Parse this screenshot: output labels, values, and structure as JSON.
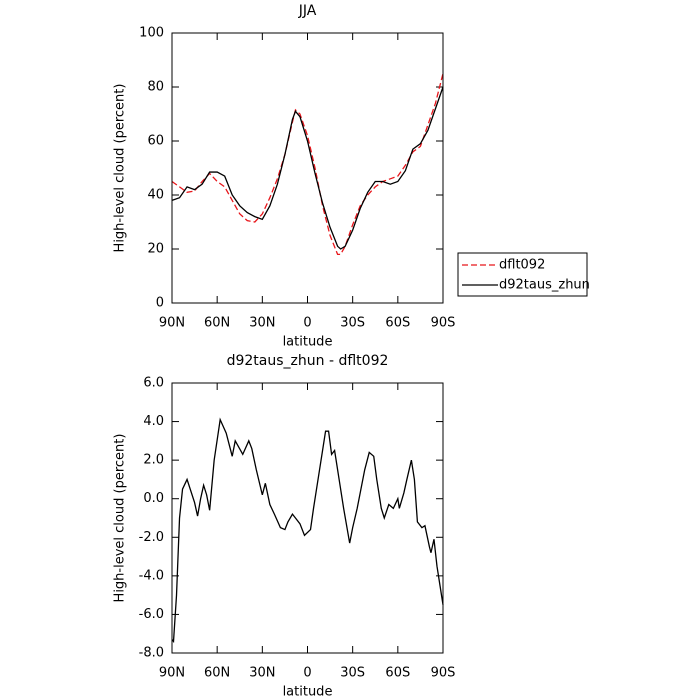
{
  "chart_data": [
    {
      "type": "line",
      "title": "JJA",
      "ylabel": "High-level cloud (percent)",
      "xlabel": "latitude",
      "x": [
        90,
        85,
        80,
        75,
        70,
        65,
        60,
        55,
        50,
        45,
        40,
        35,
        30,
        25,
        20,
        15,
        10,
        8,
        5,
        0,
        -5,
        -10,
        -15,
        -20,
        -22,
        -25,
        -30,
        -35,
        -40,
        -45,
        -50,
        -55,
        -60,
        -65,
        -70,
        -75,
        -80,
        -85,
        -90
      ],
      "series": [
        {
          "name": "dflt092",
          "color": "#e8161b",
          "line_style": "dashed",
          "values": [
            45,
            43,
            41,
            41.5,
            45,
            48,
            45,
            43,
            38,
            33,
            30.5,
            30,
            33,
            39,
            46,
            55,
            67,
            71.5,
            70,
            62,
            50,
            36,
            25,
            18,
            18,
            21,
            29,
            36,
            40,
            43,
            45,
            46,
            47,
            51,
            56,
            58,
            66,
            74,
            85
          ]
        },
        {
          "name": "d92taus_zhun",
          "color": "#000000",
          "line_style": "solid",
          "values": [
            38,
            39,
            43,
            42,
            44,
            48.5,
            48.5,
            47,
            40,
            36,
            33.5,
            32,
            31,
            36,
            44,
            55,
            68,
            71,
            69,
            60,
            48,
            37,
            28,
            21,
            20,
            21,
            27,
            35,
            41,
            45,
            45,
            44,
            45,
            49,
            57,
            59,
            64,
            72,
            80
          ]
        }
      ],
      "xlim": [
        90,
        -90
      ],
      "xticks": [
        {
          "value": 90,
          "label": "90N"
        },
        {
          "value": 60,
          "label": "60N"
        },
        {
          "value": 30,
          "label": "30N"
        },
        0,
        {
          "value": -30,
          "label": "30S"
        },
        {
          "value": -60,
          "label": "60S"
        },
        {
          "value": -90,
          "label": "90S"
        }
      ],
      "ylim": [
        0,
        100
      ],
      "yticks": [
        0,
        20,
        40,
        60,
        80,
        100
      ],
      "legend": "right"
    },
    {
      "type": "line",
      "title": "d92taus_zhun - dflt092",
      "ylabel": "High-level cloud (percent)",
      "xlabel": "latitude",
      "x": [
        90,
        89,
        87,
        85,
        83,
        80,
        75,
        73,
        71,
        69,
        67,
        65,
        62,
        58,
        54,
        50,
        48,
        43,
        39,
        37,
        34,
        30,
        28,
        25,
        22,
        18,
        15,
        13,
        10,
        8,
        5,
        2,
        -2,
        -4,
        -6,
        -10,
        -12,
        -14,
        -16,
        -18,
        -21,
        -24,
        -28,
        -30,
        -33,
        -38,
        -41,
        -44,
        -46,
        -49,
        -51,
        -54,
        -57,
        -60,
        -61,
        -64,
        -66,
        -69,
        -71,
        -73,
        -76,
        -78,
        -81,
        -82,
        -84,
        -86,
        -88,
        -90
      ],
      "values": [
        -7.3,
        -7.4,
        -5,
        -1,
        0.5,
        1.0,
        -0.2,
        -0.9,
        0.0,
        0.7,
        0.2,
        -0.6,
        2.0,
        4.1,
        3.4,
        2.2,
        3.0,
        2.3,
        3.0,
        2.6,
        1.5,
        0.2,
        0.8,
        -0.3,
        -0.8,
        -1.5,
        -1.6,
        -1.2,
        -0.8,
        -1.0,
        -1.3,
        -1.9,
        -1.6,
        -0.5,
        0.5,
        2.5,
        3.5,
        3.5,
        2.3,
        2.5,
        1.0,
        -0.5,
        -2.3,
        -1.5,
        -0.5,
        1.5,
        2.4,
        2.2,
        1.0,
        -0.5,
        -1.0,
        -0.3,
        -0.5,
        0.0,
        -0.5,
        0.3,
        1.0,
        2.0,
        1.0,
        -1.2,
        -1.5,
        -1.4,
        -2.5,
        -2.8,
        -2.1,
        -3.5,
        -4.5,
        -5.5
      ],
      "color": "#000000",
      "xlim": [
        90,
        -90
      ],
      "xticks": [
        {
          "value": 90,
          "label": "90N"
        },
        {
          "value": 60,
          "label": "60N"
        },
        {
          "value": 30,
          "label": "30N"
        },
        0,
        {
          "value": -30,
          "label": "30S"
        },
        {
          "value": -60,
          "label": "60S"
        },
        {
          "value": -90,
          "label": "90S"
        }
      ],
      "ylim": [
        -8,
        6
      ],
      "yticks": [
        {
          "value": -8,
          "label": "-8.0"
        },
        {
          "value": -6,
          "label": "-6.0"
        },
        {
          "value": -4,
          "label": "-4.0"
        },
        {
          "value": -2,
          "label": "-2.0"
        },
        {
          "value": 0,
          "label": "0.0"
        },
        {
          "value": 2,
          "label": "2.0"
        },
        {
          "value": 4,
          "label": "4.0"
        },
        {
          "value": 6,
          "label": "6.0"
        }
      ]
    }
  ]
}
